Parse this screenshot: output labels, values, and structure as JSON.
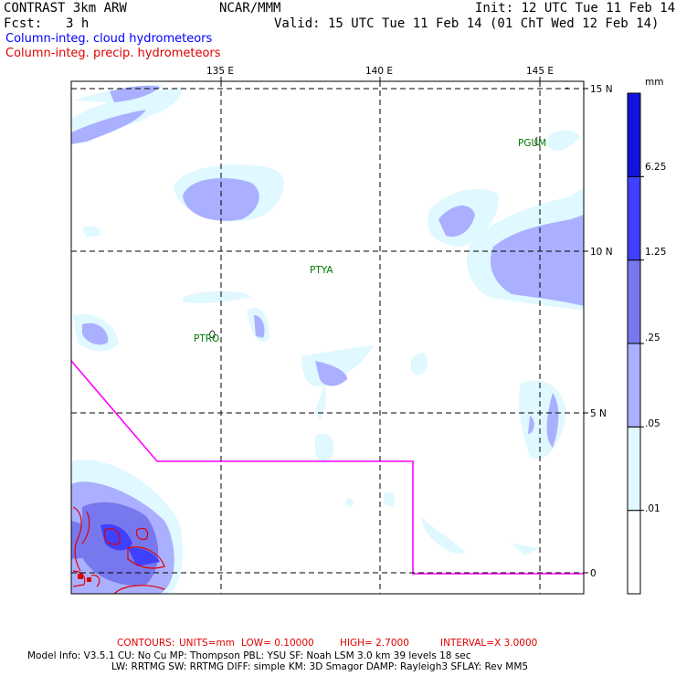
{
  "header": {
    "model": "CONTRAST  3km ARW",
    "org": "NCAR/MMM",
    "init": "Init: 12 UTC Tue 11 Feb 14",
    "fcst_label": "Fcst:",
    "fcst_value": "3 h",
    "valid": "Valid: 15 UTC Tue 11 Feb 14 (01 ChT Wed 12 Feb 14)"
  },
  "legend": {
    "cloud": "Column-integ. cloud hydrometeors",
    "precip": "Column-integ. precip. hydrometeors",
    "cloud_color": "#0000ff",
    "precip_color": "#e00000"
  },
  "map": {
    "lon_labels": [
      "135 E",
      "140 E",
      "145 E"
    ],
    "lat_labels": [
      "15 N",
      "10 N",
      "5 N",
      "0"
    ],
    "stations": [
      "PGUM",
      "PTYA",
      "PTRO"
    ],
    "boundary_color": "#ff00ff",
    "grid": "dashed"
  },
  "colorbar": {
    "unit": "mm",
    "levels": [
      ".01",
      ".05",
      ".25",
      "1.25",
      "6.25"
    ],
    "colors": [
      "#ffffff",
      "#e0f8ff",
      "#aab0ff",
      "#7878ee",
      "#4040ff",
      "#1414dd"
    ]
  },
  "footer": {
    "contours": {
      "label": "CONTOURS:",
      "units": "UNITS=mm",
      "low": "LOW= 0.10000",
      "high": "HIGH= 2.7000",
      "interval": "INTERVAL=X  3.0000"
    },
    "line1": "Model Info: V3.5.1     CU: No Cu     MP: Thompson     PBL: YSU       SF: Noah LSM     3.0 km   39 levels    18 sec",
    "line2": "LW: RRTMG     SW: RRTMG   DIFF: simple KM: 3D Smagor DAMP: Rayleigh3   SFLAY: Rev MM5"
  }
}
